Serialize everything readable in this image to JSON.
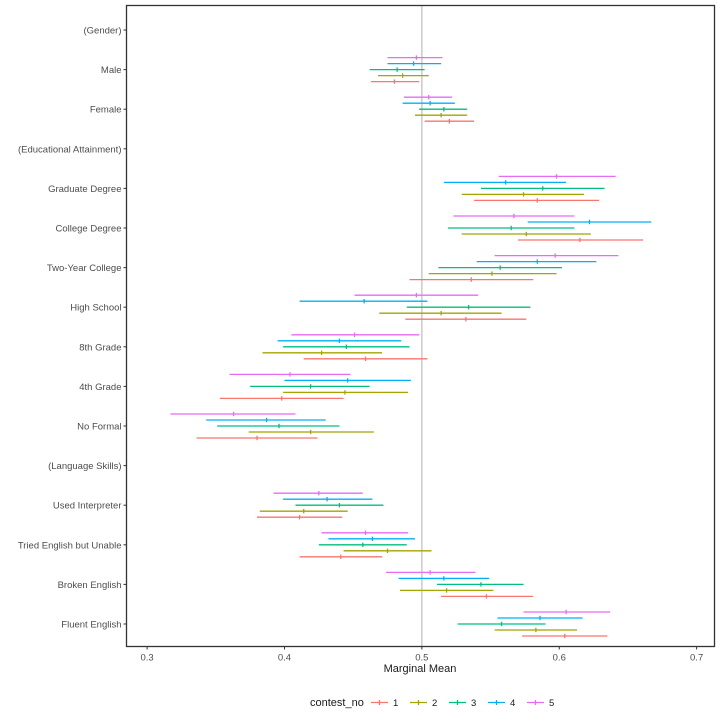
{
  "chart_data": {
    "type": "scatter",
    "subtype": "dot-and-whisker (point estimate with confidence interval)",
    "title": "",
    "xlabel": "Marginal Mean",
    "ylabel": "",
    "xlim": [
      0.285,
      0.713
    ],
    "x_ticks": [
      0.3,
      0.4,
      0.5,
      0.6,
      0.7
    ],
    "x_tick_labels": [
      "0.3",
      "0.4",
      "0.5",
      "0.6",
      "0.7"
    ],
    "reference_line": 0.5,
    "grid": false,
    "legend": {
      "title": "contest_no",
      "placement": "bottom",
      "entries": [
        {
          "label": "1",
          "color": "#F8766D"
        },
        {
          "label": "2",
          "color": "#A3A500"
        },
        {
          "label": "3",
          "color": "#00BF7D"
        },
        {
          "label": "4",
          "color": "#00B0F6"
        },
        {
          "label": "5",
          "color": "#E76BF3"
        }
      ]
    },
    "categories": [
      "(Gender)",
      "Male",
      "Female",
      "(Educational Attainment)",
      "Graduate Degree",
      "College Degree",
      "Two-Year College",
      "High School",
      "8th Grade",
      "4th Grade",
      "No Formal",
      "(Language Skills)",
      "Used Interpreter",
      "Tried English but Unable",
      "Broken English",
      "Fluent English"
    ],
    "series": [
      {
        "name": "1",
        "color": "#F8766D",
        "values": [
          null,
          {
            "mean": 0.48,
            "lower": 0.463,
            "upper": 0.498
          },
          {
            "mean": 0.52,
            "lower": 0.502,
            "upper": 0.538
          },
          null,
          {
            "mean": 0.584,
            "lower": 0.538,
            "upper": 0.629
          },
          {
            "mean": 0.615,
            "lower": 0.57,
            "upper": 0.661
          },
          {
            "mean": 0.536,
            "lower": 0.491,
            "upper": 0.581
          },
          {
            "mean": 0.532,
            "lower": 0.488,
            "upper": 0.576
          },
          {
            "mean": 0.459,
            "lower": 0.414,
            "upper": 0.504
          },
          {
            "mean": 0.398,
            "lower": 0.353,
            "upper": 0.443
          },
          {
            "mean": 0.38,
            "lower": 0.336,
            "upper": 0.424
          },
          null,
          {
            "mean": 0.411,
            "lower": 0.38,
            "upper": 0.442
          },
          {
            "mean": 0.441,
            "lower": 0.411,
            "upper": 0.471
          },
          {
            "mean": 0.547,
            "lower": 0.514,
            "upper": 0.581
          },
          {
            "mean": 0.604,
            "lower": 0.573,
            "upper": 0.635
          }
        ]
      },
      {
        "name": "2",
        "color": "#A3A500",
        "values": [
          null,
          {
            "mean": 0.486,
            "lower": 0.468,
            "upper": 0.505
          },
          {
            "mean": 0.514,
            "lower": 0.495,
            "upper": 0.533
          },
          null,
          {
            "mean": 0.574,
            "lower": 0.529,
            "upper": 0.618
          },
          {
            "mean": 0.576,
            "lower": 0.529,
            "upper": 0.623
          },
          {
            "mean": 0.551,
            "lower": 0.505,
            "upper": 0.598
          },
          {
            "mean": 0.514,
            "lower": 0.469,
            "upper": 0.558
          },
          {
            "mean": 0.427,
            "lower": 0.384,
            "upper": 0.471
          },
          {
            "mean": 0.444,
            "lower": 0.399,
            "upper": 0.49
          },
          {
            "mean": 0.419,
            "lower": 0.374,
            "upper": 0.465
          },
          null,
          {
            "mean": 0.414,
            "lower": 0.382,
            "upper": 0.446
          },
          {
            "mean": 0.475,
            "lower": 0.443,
            "upper": 0.507
          },
          {
            "mean": 0.518,
            "lower": 0.484,
            "upper": 0.552
          },
          {
            "mean": 0.583,
            "lower": 0.553,
            "upper": 0.613
          }
        ]
      },
      {
        "name": "3",
        "color": "#00BF7D",
        "values": [
          null,
          {
            "mean": 0.482,
            "lower": 0.462,
            "upper": 0.502
          },
          {
            "mean": 0.516,
            "lower": 0.498,
            "upper": 0.533
          },
          null,
          {
            "mean": 0.588,
            "lower": 0.543,
            "upper": 0.633
          },
          {
            "mean": 0.565,
            "lower": 0.519,
            "upper": 0.611
          },
          {
            "mean": 0.557,
            "lower": 0.512,
            "upper": 0.602
          },
          {
            "mean": 0.534,
            "lower": 0.489,
            "upper": 0.579
          },
          {
            "mean": 0.445,
            "lower": 0.399,
            "upper": 0.491
          },
          {
            "mean": 0.419,
            "lower": 0.375,
            "upper": 0.462
          },
          {
            "mean": 0.396,
            "lower": 0.351,
            "upper": 0.44
          },
          null,
          {
            "mean": 0.44,
            "lower": 0.408,
            "upper": 0.472
          },
          {
            "mean": 0.457,
            "lower": 0.425,
            "upper": 0.489
          },
          {
            "mean": 0.543,
            "lower": 0.511,
            "upper": 0.574
          },
          {
            "mean": 0.558,
            "lower": 0.526,
            "upper": 0.59
          }
        ]
      },
      {
        "name": "4",
        "color": "#00B0F6",
        "values": [
          null,
          {
            "mean": 0.494,
            "lower": 0.475,
            "upper": 0.514
          },
          {
            "mean": 0.506,
            "lower": 0.486,
            "upper": 0.524
          },
          null,
          {
            "mean": 0.561,
            "lower": 0.516,
            "upper": 0.605
          },
          {
            "mean": 0.622,
            "lower": 0.577,
            "upper": 0.667
          },
          {
            "mean": 0.584,
            "lower": 0.54,
            "upper": 0.627
          },
          {
            "mean": 0.458,
            "lower": 0.411,
            "upper": 0.504
          },
          {
            "mean": 0.44,
            "lower": 0.395,
            "upper": 0.485
          },
          {
            "mean": 0.446,
            "lower": 0.4,
            "upper": 0.492
          },
          {
            "mean": 0.387,
            "lower": 0.343,
            "upper": 0.43
          },
          null,
          {
            "mean": 0.431,
            "lower": 0.399,
            "upper": 0.464
          },
          {
            "mean": 0.464,
            "lower": 0.432,
            "upper": 0.495
          },
          {
            "mean": 0.516,
            "lower": 0.483,
            "upper": 0.549
          },
          {
            "mean": 0.586,
            "lower": 0.555,
            "upper": 0.617
          }
        ]
      },
      {
        "name": "5",
        "color": "#E76BF3",
        "values": [
          null,
          {
            "mean": 0.496,
            "lower": 0.475,
            "upper": 0.515
          },
          {
            "mean": 0.505,
            "lower": 0.487,
            "upper": 0.522
          },
          null,
          {
            "mean": 0.598,
            "lower": 0.556,
            "upper": 0.641
          },
          {
            "mean": 0.567,
            "lower": 0.523,
            "upper": 0.611
          },
          {
            "mean": 0.597,
            "lower": 0.553,
            "upper": 0.643
          },
          {
            "mean": 0.496,
            "lower": 0.451,
            "upper": 0.541
          },
          {
            "mean": 0.451,
            "lower": 0.405,
            "upper": 0.498
          },
          {
            "mean": 0.404,
            "lower": 0.36,
            "upper": 0.448
          },
          {
            "mean": 0.363,
            "lower": 0.317,
            "upper": 0.408
          },
          null,
          {
            "mean": 0.425,
            "lower": 0.392,
            "upper": 0.457
          },
          {
            "mean": 0.459,
            "lower": 0.427,
            "upper": 0.49
          },
          {
            "mean": 0.506,
            "lower": 0.474,
            "upper": 0.539
          },
          {
            "mean": 0.605,
            "lower": 0.574,
            "upper": 0.637
          }
        ]
      }
    ]
  }
}
